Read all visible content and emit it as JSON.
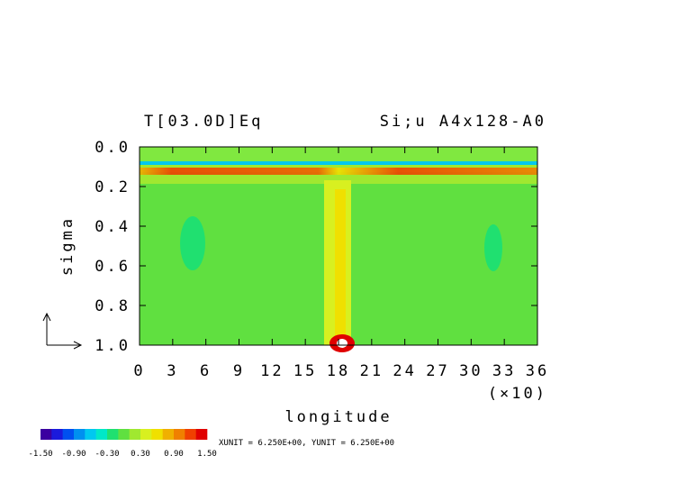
{
  "chart_data": {
    "type": "contour",
    "title": "T[03.0D]Eq",
    "subtitle": "Si;u A4x128-A0",
    "x_label": "longitude",
    "x_scale_note": "(×10)",
    "y_label": "sigma",
    "xlim": [
      0,
      36
    ],
    "xticks": [
      0,
      3,
      6,
      9,
      12,
      15,
      18,
      21,
      24,
      27,
      30,
      33,
      36
    ],
    "ylim": [
      0,
      1
    ],
    "yticks": [
      {
        "value": 0,
        "label": "0.0"
      },
      {
        "value": 0.2,
        "label": "0.2"
      },
      {
        "value": 0.4,
        "label": "0.4"
      },
      {
        "value": 0.6,
        "label": "0.6"
      },
      {
        "value": 0.8,
        "label": "0.8"
      },
      {
        "value": 1,
        "label": "1.0"
      }
    ],
    "colorbar": {
      "lim": [
        -1.5,
        1.5
      ],
      "colors": [
        "#3a00a0",
        "#1a1adc",
        "#0050f0",
        "#0090f0",
        "#00c8f0",
        "#00e8c8",
        "#20e070",
        "#60e040",
        "#a0e830",
        "#d8f020",
        "#f0e000",
        "#f0b000",
        "#f08000",
        "#f04000",
        "#e00000"
      ],
      "ticks": [
        {
          "value": -1.5,
          "label": "-1.50"
        },
        {
          "value": -0.9,
          "label": "-0.90"
        },
        {
          "value": -0.3,
          "label": "-0.30"
        },
        {
          "value": 0.3,
          "label": "0.30"
        },
        {
          "value": 0.9,
          "label": "0.90"
        },
        {
          "value": 1.5,
          "label": "1.50"
        }
      ]
    },
    "unit_note": "XUNIT = 6.250E+00, YUNIT = 6.250E+00"
  }
}
